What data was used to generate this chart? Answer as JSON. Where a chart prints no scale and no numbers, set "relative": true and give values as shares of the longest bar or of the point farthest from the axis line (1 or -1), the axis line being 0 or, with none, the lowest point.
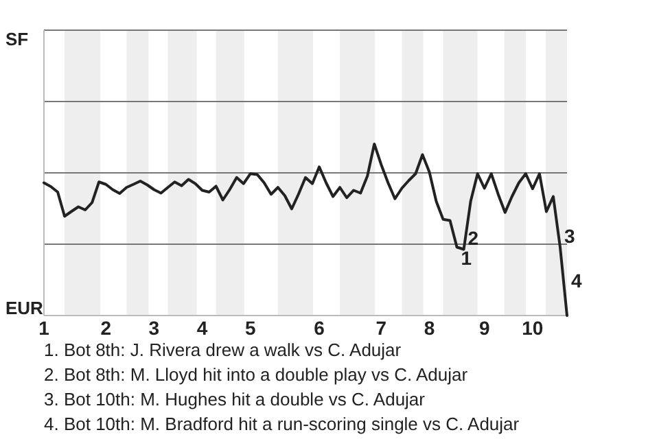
{
  "chart_data": {
    "type": "line",
    "relative": true,
    "categories": [
      "1",
      null,
      null,
      null,
      null,
      null,
      null,
      null,
      null,
      "2",
      null,
      null,
      null,
      null,
      null,
      null,
      "3",
      null,
      null,
      null,
      null,
      null,
      null,
      "4",
      null,
      null,
      null,
      null,
      null,
      null,
      "5",
      null,
      null,
      null,
      null,
      null,
      null,
      null,
      null,
      null,
      "6",
      null,
      null,
      null,
      null,
      null,
      null,
      null,
      null,
      "7",
      null,
      null,
      null,
      null,
      null,
      null,
      "8",
      null,
      null,
      null,
      null,
      null,
      null,
      null,
      "9",
      null,
      null,
      null,
      null,
      null,
      null,
      "10",
      null,
      null,
      null,
      null,
      null
    ],
    "series": [
      {
        "color": "#222222",
        "values": [
          0.774,
          0.752,
          0.72,
          0.579,
          0.607,
          0.634,
          0.616,
          0.659,
          0.779,
          0.765,
          0.734,
          0.712,
          0.747,
          0.765,
          0.784,
          0.762,
          0.734,
          0.714,
          0.747,
          0.779,
          0.757,
          0.794,
          0.769,
          0.73,
          0.72,
          0.754,
          0.674,
          0.735,
          0.805,
          0.769,
          0.827,
          0.822,
          0.774,
          0.707,
          0.747,
          0.699,
          0.622,
          0.709,
          0.805,
          0.769,
          0.867,
          0.774,
          0.694,
          0.747,
          0.687,
          0.73,
          0.714,
          0.814,
          1,
          0.88,
          0.774,
          0.681,
          0.742,
          0.787,
          0.827,
          0.938,
          0.837,
          0.666,
          0.561,
          0.554,
          0.399,
          0.386,
          0.666,
          0.827,
          0.742,
          0.827,
          0.707,
          0.601,
          0.694,
          0.774,
          0.827,
          0.739,
          0.827,
          0.606,
          0.694,
          0.399,
          0
        ]
      }
    ],
    "ref_lines": [
      {
        "axis": "y",
        "value": 0.416,
        "color": "#777777"
      },
      {
        "axis": "y",
        "value": 0.832,
        "color": "#777777"
      },
      {
        "axis": "y",
        "value": 1.248,
        "color": "#777777"
      }
    ],
    "annotations": [
      {
        "text": "1",
        "y": 0.399
      },
      {
        "text": "2",
        "y": 0.386
      },
      {
        "text": "3",
        "y": 0.399
      },
      "4",
      "SF",
      "EUR",
      "1. Bot 8th: J. Rivera drew a walk vs C. Adujar",
      "2. Bot 8th: M. Lloyd hit into a double play vs C. Adujar",
      "3. Bot 10th: M. Hughes hit a double vs C. Adujar",
      "4. Bot 10th: M. Bradford hit a run-scoring single vs C. Adujar"
    ]
  }
}
